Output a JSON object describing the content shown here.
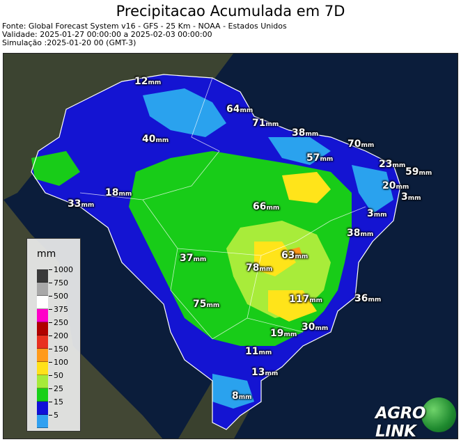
{
  "header": {
    "title": "Precipitacao Acumulada em 7D",
    "source": "Fonte: Global Forecast System v16 - GFS - 25 Km - NOAA - Estados Unidos",
    "validity": "Validade: 2025-01-27 00:00:00 a 2025-02-03 00:00:00",
    "simulation": "Simulação :2025-01-20 00 (GMT-3)"
  },
  "legend": {
    "title": "mm",
    "ticks": [
      "1000",
      "750",
      "500",
      "375",
      "250",
      "200",
      "150",
      "100",
      "50",
      "25",
      "15",
      "5"
    ],
    "colors": [
      "#3a3a3a",
      "#a8a8a8",
      "#ffffff",
      "#ff00c8",
      "#b00000",
      "#e83020",
      "#ff9a1a",
      "#ffe11a",
      "#a6ea3a",
      "#18d018",
      "#1010d8",
      "#30a0f0"
    ]
  },
  "labels": [
    {
      "value": "12",
      "unit": "mm"
    },
    {
      "value": "64",
      "unit": "mm"
    },
    {
      "value": "71",
      "unit": "mm"
    },
    {
      "value": "38",
      "unit": "mm"
    },
    {
      "value": "40",
      "unit": "mm"
    },
    {
      "value": "70",
      "unit": "mm"
    },
    {
      "value": "57",
      "unit": "mm"
    },
    {
      "value": "23",
      "unit": "mm"
    },
    {
      "value": "59",
      "unit": "mm"
    },
    {
      "value": "20",
      "unit": "mm"
    },
    {
      "value": "3",
      "unit": "mm"
    },
    {
      "value": "18",
      "unit": "mm"
    },
    {
      "value": "33",
      "unit": "mm"
    },
    {
      "value": "66",
      "unit": "mm"
    },
    {
      "value": "3",
      "unit": "mm"
    },
    {
      "value": "38",
      "unit": "mm"
    },
    {
      "value": "63",
      "unit": "mm"
    },
    {
      "value": "37",
      "unit": "mm"
    },
    {
      "value": "78",
      "unit": "mm"
    },
    {
      "value": "117",
      "unit": "mm"
    },
    {
      "value": "36",
      "unit": "mm"
    },
    {
      "value": "75",
      "unit": "mm"
    },
    {
      "value": "19",
      "unit": "mm"
    },
    {
      "value": "30",
      "unit": "mm"
    },
    {
      "value": "11",
      "unit": "mm"
    },
    {
      "value": "13",
      "unit": "mm"
    },
    {
      "value": "8",
      "unit": "mm"
    }
  ],
  "logo": {
    "text": "AGRO LINK"
  },
  "colors": {
    "ocean": "#0a1c3a",
    "land": "#3b4230",
    "blue": "#1010d0",
    "light_blue": "#28a0ee",
    "green": "#18cc18",
    "light_green": "#a8ec3a",
    "yellow": "#ffe41a",
    "orange": "#ff9a1a"
  }
}
